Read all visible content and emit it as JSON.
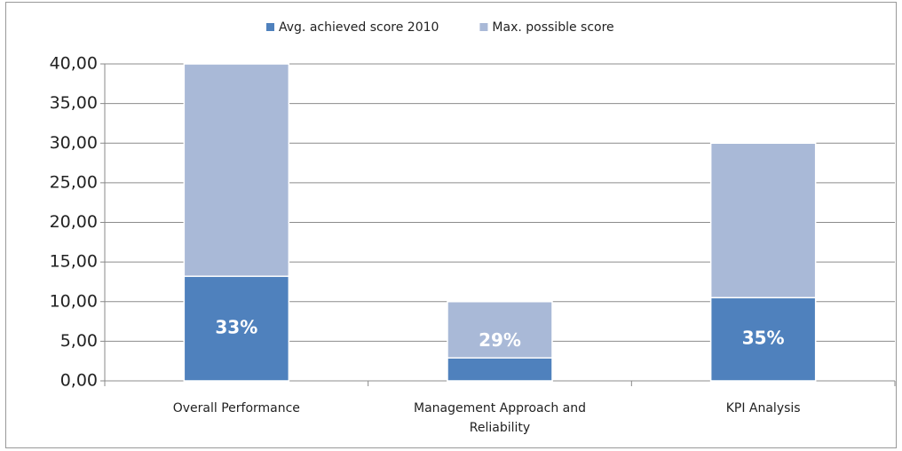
{
  "chart_data": {
    "type": "bar",
    "categories": [
      "Overall Performance",
      "Management Approach and Reliability",
      "KPI Analysis"
    ],
    "series": [
      {
        "name": "Avg. achieved score 2010",
        "color": "#4f81bd",
        "values": [
          13.2,
          2.9,
          10.5
        ]
      },
      {
        "name": "Max. possible score",
        "color": "#a9b9d7",
        "values": [
          40,
          10,
          30
        ]
      }
    ],
    "data_labels": [
      "33%",
      "29%",
      "35%"
    ],
    "ylim": [
      0,
      40
    ],
    "yticks": [
      {
        "value": 0,
        "label": "0,00"
      },
      {
        "value": 5,
        "label": "5,00"
      },
      {
        "value": 10,
        "label": "10,00"
      },
      {
        "value": 15,
        "label": "15,00"
      },
      {
        "value": 20,
        "label": "20,00"
      },
      {
        "value": 25,
        "label": "25,00"
      },
      {
        "value": 30,
        "label": "30,00"
      },
      {
        "value": 35,
        "label": "35,00"
      },
      {
        "value": 40,
        "label": "40,00"
      }
    ],
    "grid": true,
    "legend": "top"
  }
}
